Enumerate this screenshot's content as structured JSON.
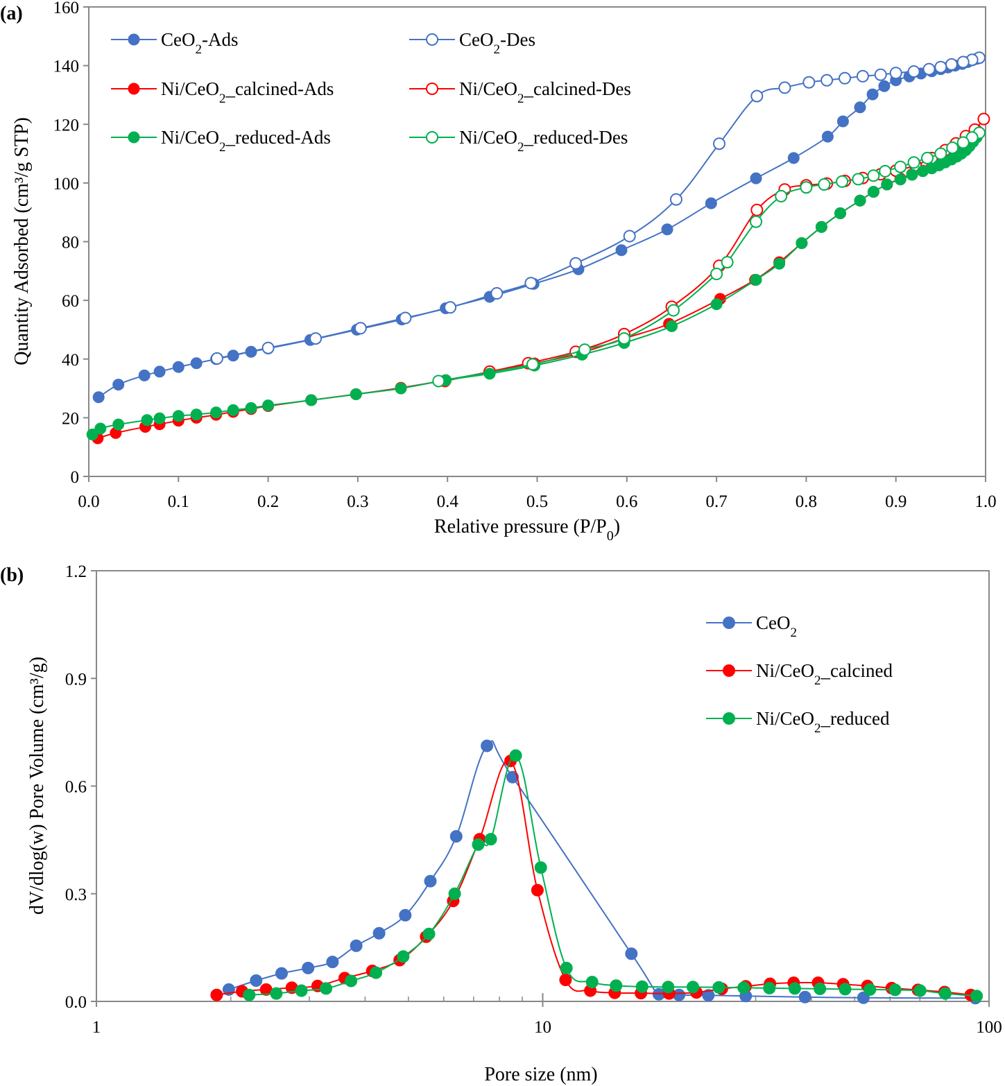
{
  "chart_data": [
    {
      "panel_label": "(a)",
      "type": "line",
      "xlabel": "Relative pressure (P/P",
      "xlabel_sub": "0",
      "xlabel_end": ")",
      "ylabel": "Quantity Adsorbed (cm³/g STP)",
      "xlim": [
        0.0,
        1.0
      ],
      "ylim": [
        0,
        160
      ],
      "xticks": [
        "0.0",
        "0.1",
        "0.2",
        "0.3",
        "0.4",
        "0.5",
        "0.6",
        "0.7",
        "0.8",
        "0.9",
        "1.0"
      ],
      "yticks": [
        "0",
        "20",
        "40",
        "60",
        "80",
        "100",
        "120",
        "140",
        "160"
      ],
      "legend": [
        {
          "pre": "CeO",
          "sub": "2",
          "post": "-Ads"
        },
        {
          "pre": "CeO",
          "sub": "2",
          "post": "-Des"
        },
        {
          "pre": "Ni/CeO",
          "sub": "2",
          "post": "_calcined-Ads"
        },
        {
          "pre": "Ni/CeO",
          "sub": "2",
          "post": "_calcined-Des"
        },
        {
          "pre": "Ni/CeO",
          "sub": "2",
          "post": "_reduced-Ads"
        },
        {
          "pre": "Ni/CeO",
          "sub": "2",
          "post": "_reduced-Des"
        }
      ],
      "series": [
        {
          "name": "CeO2-Ads",
          "color": "#4472C4",
          "filled": true,
          "x": [
            0.011,
            0.033,
            0.062,
            0.079,
            0.1,
            0.12,
            0.142,
            0.161,
            0.181,
            0.2,
            0.247,
            0.299,
            0.349,
            0.398,
            0.447,
            0.496,
            0.546,
            0.594,
            0.645,
            0.694,
            0.744,
            0.786,
            0.824,
            0.841,
            0.86,
            0.874,
            0.887,
            0.9,
            0.915,
            0.928,
            0.94,
            0.95,
            0.958,
            0.966,
            0.974,
            0.98,
            0.985,
            0.99
          ],
          "y": [
            27,
            31.3,
            34.4,
            35.7,
            37.3,
            38.6,
            40,
            41.2,
            42.5,
            43.6,
            46.5,
            50,
            53.5,
            57.3,
            61.2,
            65.6,
            70.6,
            77.1,
            84.2,
            93.1,
            101.6,
            108.5,
            115.8,
            121,
            125.8,
            130.2,
            133,
            135,
            136.3,
            137.3,
            138.1,
            138.8,
            139.4,
            140,
            140.6,
            141.2,
            141.8,
            142.3
          ]
        },
        {
          "name": "CeO2-Des",
          "color": "#4472C4",
          "filled": false,
          "x": [
            0.993,
            0.985,
            0.975,
            0.962,
            0.95,
            0.937,
            0.92,
            0.9,
            0.883,
            0.863,
            0.843,
            0.823,
            0.803,
            0.776,
            0.745,
            0.703,
            0.655,
            0.603,
            0.543,
            0.493,
            0.455,
            0.403,
            0.353,
            0.303,
            0.253,
            0.2,
            0.143
          ],
          "y": [
            142.7,
            142,
            141.2,
            140.4,
            139.5,
            138.8,
            138,
            137.5,
            136.9,
            136.4,
            135.7,
            135,
            134.3,
            132.5,
            129.6,
            113.4,
            94.4,
            81.9,
            72.6,
            65.9,
            62.4,
            57.6,
            54,
            50.5,
            47,
            43.8,
            40.2
          ]
        },
        {
          "name": "Ni/CeO2_calcined-Ads",
          "color": "#FF0000",
          "filled": true,
          "x": [
            0.01,
            0.03,
            0.063,
            0.079,
            0.1,
            0.12,
            0.142,
            0.161,
            0.181,
            0.2,
            0.248,
            0.298,
            0.348,
            0.398,
            0.447,
            0.497,
            0.548,
            0.597,
            0.647,
            0.704,
            0.743,
            0.77,
            0.795,
            0.817,
            0.838,
            0.86,
            0.875,
            0.89,
            0.905,
            0.918,
            0.93,
            0.94,
            0.948,
            0.955,
            0.962,
            0.968,
            0.973,
            0.978,
            0.982,
            0.986,
            0.99
          ],
          "y": [
            13,
            14.8,
            16.9,
            17.8,
            19,
            20,
            21,
            22,
            23,
            24,
            26,
            28,
            30.2,
            32.8,
            35.6,
            38.5,
            42,
            47,
            52,
            60.5,
            67,
            73,
            79.5,
            85,
            89.7,
            94,
            97,
            99.5,
            101.5,
            103,
            104.2,
            105.5,
            106.8,
            108,
            109.3,
            110.6,
            112,
            113.5,
            115,
            116.5,
            118
          ]
        },
        {
          "name": "Ni/CeO2_calcined-Des",
          "color": "#FF0000",
          "filled": false,
          "x": [
            0.998,
            0.988,
            0.978,
            0.967,
            0.955,
            0.94,
            0.922,
            0.9,
            0.883,
            0.863,
            0.843,
            0.823,
            0.8,
            0.776,
            0.745,
            0.703,
            0.65,
            0.597,
            0.543,
            0.49,
            0.447,
            0.397
          ],
          "y": [
            121.8,
            118.2,
            116,
            113.5,
            111.2,
            108.5,
            106,
            104.2,
            103,
            101.7,
            100.7,
            99.8,
            99.2,
            97.8,
            90.8,
            71.8,
            57.8,
            48.5,
            42.5,
            38.6,
            35.7,
            32.5
          ]
        },
        {
          "name": "Ni/CeO2_reduced-Ads",
          "color": "#00B050",
          "filled": true,
          "x": [
            0.004,
            0.013,
            0.033,
            0.065,
            0.079,
            0.1,
            0.12,
            0.142,
            0.161,
            0.181,
            0.2,
            0.248,
            0.298,
            0.348,
            0.398,
            0.447,
            0.497,
            0.55,
            0.597,
            0.65,
            0.7,
            0.744,
            0.77,
            0.795,
            0.817,
            0.838,
            0.86,
            0.875,
            0.89,
            0.905,
            0.918,
            0.93,
            0.94,
            0.948,
            0.955,
            0.962,
            0.968,
            0.973,
            0.978,
            0.982,
            0.986,
            0.99
          ],
          "y": [
            14.3,
            16.3,
            17.7,
            19.2,
            19.8,
            20.6,
            21.1,
            21.8,
            22.6,
            23.3,
            24.2,
            26,
            28,
            30,
            32.8,
            35,
            37.8,
            41.5,
            45.5,
            51.2,
            58.7,
            67,
            72.5,
            79.5,
            85,
            89.7,
            94,
            97,
            99.5,
            101.2,
            102.8,
            104,
            105,
            106,
            107,
            108,
            109,
            110,
            111.2,
            112.5,
            114,
            115.5
          ]
        },
        {
          "name": "Ni/CeO2_reduced-Des",
          "color": "#00B050",
          "filled": false,
          "x": [
            0.993,
            0.985,
            0.975,
            0.963,
            0.95,
            0.935,
            0.92,
            0.905,
            0.888,
            0.875,
            0.858,
            0.84,
            0.82,
            0.8,
            0.772,
            0.744,
            0.712,
            0.7,
            0.652,
            0.597,
            0.553,
            0.495,
            0.39
          ],
          "y": [
            117.1,
            115.5,
            113.8,
            112,
            110,
            108.5,
            107,
            105.5,
            104,
            102.5,
            101.3,
            100.5,
            99.5,
            98.5,
            95.5,
            86.8,
            73,
            69,
            56.6,
            47,
            43.2,
            38.2,
            32.5
          ]
        }
      ]
    },
    {
      "panel_label": "(b)",
      "type": "line",
      "xscale": "log",
      "xlabel": "Pore size (nm)",
      "ylabel": "dV/dlog(w) Pore Volume (cm³/g)",
      "xlim": [
        1,
        100
      ],
      "ylim": [
        0,
        1.2
      ],
      "xticks": [
        "1",
        "10",
        "100"
      ],
      "yticks": [
        "0.0",
        "0.3",
        "0.6",
        "0.9",
        "1.2"
      ],
      "legend": [
        {
          "pre": "CeO",
          "sub": "2",
          "post": ""
        },
        {
          "pre": "Ni/CeO",
          "sub": "2",
          "post": "_calcined"
        },
        {
          "pre": "Ni/CeO",
          "sub": "2",
          "post": "_reduced"
        }
      ],
      "series": [
        {
          "name": "CeO2",
          "color": "#4472C4",
          "filled": true,
          "x": [
            1.98,
            2.28,
            2.6,
            2.98,
            3.38,
            3.82,
            4.3,
            4.92,
            5.6,
            6.4,
            7.5,
            8.56,
            15.8,
            18.2,
            20.2,
            23.5,
            28.5,
            38.7,
            52.3,
            93.2
          ],
          "y": [
            0.033,
            0.058,
            0.078,
            0.093,
            0.11,
            0.155,
            0.19,
            0.24,
            0.335,
            0.46,
            0.712,
            0.625,
            0.133,
            0.02,
            0.018,
            0.017,
            0.015,
            0.012,
            0.01,
            0.009
          ]
        },
        {
          "name": "Ni/CeO2_calcined",
          "color": "#FF0000",
          "filled": true,
          "x": [
            1.86,
            2.12,
            2.4,
            2.74,
            3.13,
            3.6,
            4.15,
            4.78,
            5.48,
            6.3,
            7.22,
            8.47,
            9.73,
            11.25,
            12.78,
            14.5,
            16.6,
            19.2,
            22.1,
            25.2,
            28.5,
            32.3,
            36.5,
            41.4,
            47.1,
            53.4,
            60.5,
            69.3,
            79.5,
            91
          ],
          "y": [
            0.018,
            0.028,
            0.033,
            0.038,
            0.043,
            0.065,
            0.085,
            0.115,
            0.18,
            0.28,
            0.452,
            0.67,
            0.31,
            0.06,
            0.03,
            0.024,
            0.023,
            0.022,
            0.025,
            0.035,
            0.042,
            0.049,
            0.052,
            0.052,
            0.048,
            0.043,
            0.037,
            0.032,
            0.026,
            0.018
          ]
        },
        {
          "name": "Ni/CeO2_reduced",
          "color": "#00B050",
          "filled": true,
          "x": [
            2.2,
            2.53,
            2.88,
            3.27,
            3.72,
            4.23,
            4.87,
            5.56,
            6.35,
            7.17,
            7.65,
            8.7,
            9.9,
            11.3,
            12.9,
            14.6,
            16.7,
            19.1,
            21.7,
            24.8,
            28.2,
            32.2,
            36.7,
            41.8,
            47.6,
            54.1,
            61.6,
            70.1,
            79.8,
            93.8
          ],
          "y": [
            0.018,
            0.022,
            0.03,
            0.036,
            0.057,
            0.08,
            0.125,
            0.188,
            0.3,
            0.437,
            0.452,
            0.685,
            0.373,
            0.093,
            0.054,
            0.044,
            0.041,
            0.04,
            0.04,
            0.039,
            0.038,
            0.037,
            0.036,
            0.035,
            0.034,
            0.033,
            0.032,
            0.03,
            0.022,
            0.015
          ]
        }
      ]
    }
  ]
}
